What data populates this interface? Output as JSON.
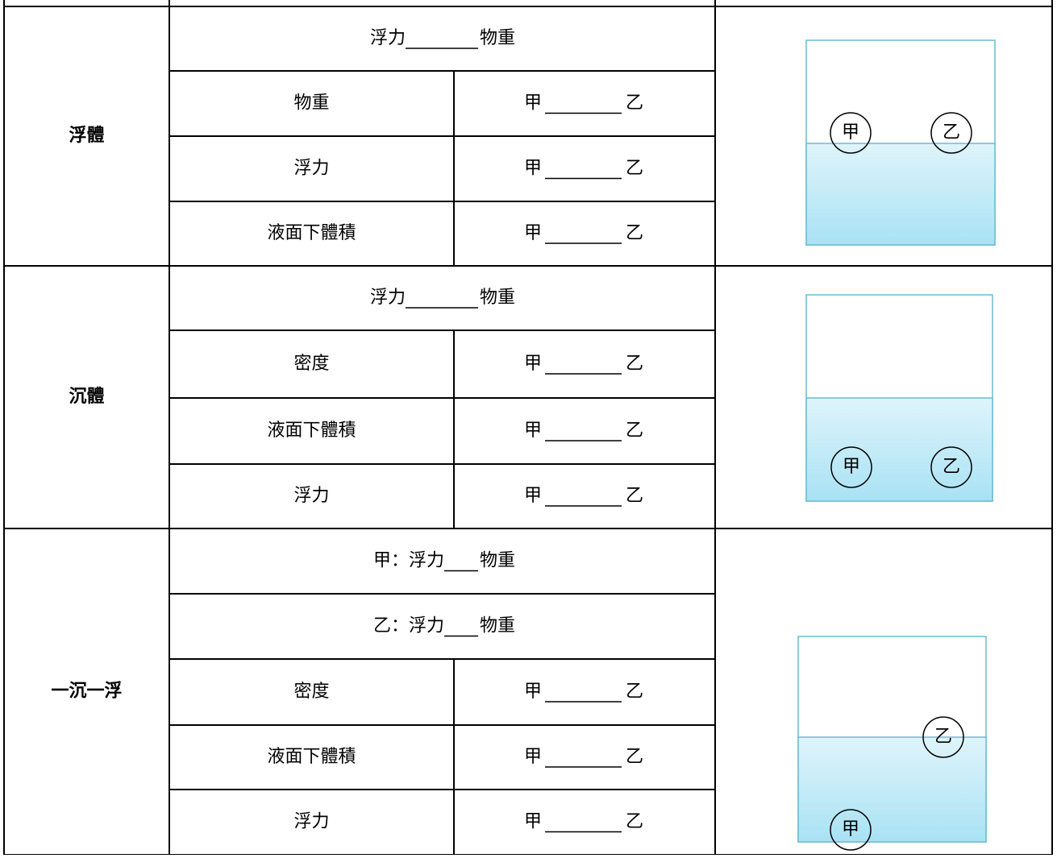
{
  "sections": [
    {
      "label": "浮體",
      "rows": [
        {
          "left": "浮力",
          "right": "物重"
        },
        {
          "name": "物重",
          "left": "甲",
          "right": "乙"
        },
        {
          "name": "浮力",
          "left": "甲",
          "right": "乙"
        },
        {
          "name": "液面下體積",
          "left": "甲",
          "right": "乙"
        }
      ],
      "beaker": {
        "labels": [
          "甲",
          "乙"
        ]
      }
    },
    {
      "label": "沉體",
      "rows": [
        {
          "left": "浮力",
          "right": "物重"
        },
        {
          "name": "密度",
          "left": "甲",
          "right": "乙"
        },
        {
          "name": "液面下體積",
          "left": "甲",
          "right": "乙"
        },
        {
          "name": "浮力",
          "left": "甲",
          "right": "乙"
        }
      ],
      "beaker": {
        "labels": [
          "甲",
          "乙"
        ]
      }
    },
    {
      "label": "一沉一浮",
      "rows": [
        {
          "left": "甲：浮力",
          "right": "物重"
        },
        {
          "left": "乙：浮力",
          "right": "物重"
        },
        {
          "name": "密度",
          "left": "甲",
          "right": "乙"
        },
        {
          "name": "液面下體積",
          "left": "甲",
          "right": "乙"
        },
        {
          "name": "浮力",
          "left": "甲",
          "right": "乙"
        }
      ],
      "beaker": {
        "labels": [
          "甲",
          "乙"
        ]
      }
    }
  ]
}
